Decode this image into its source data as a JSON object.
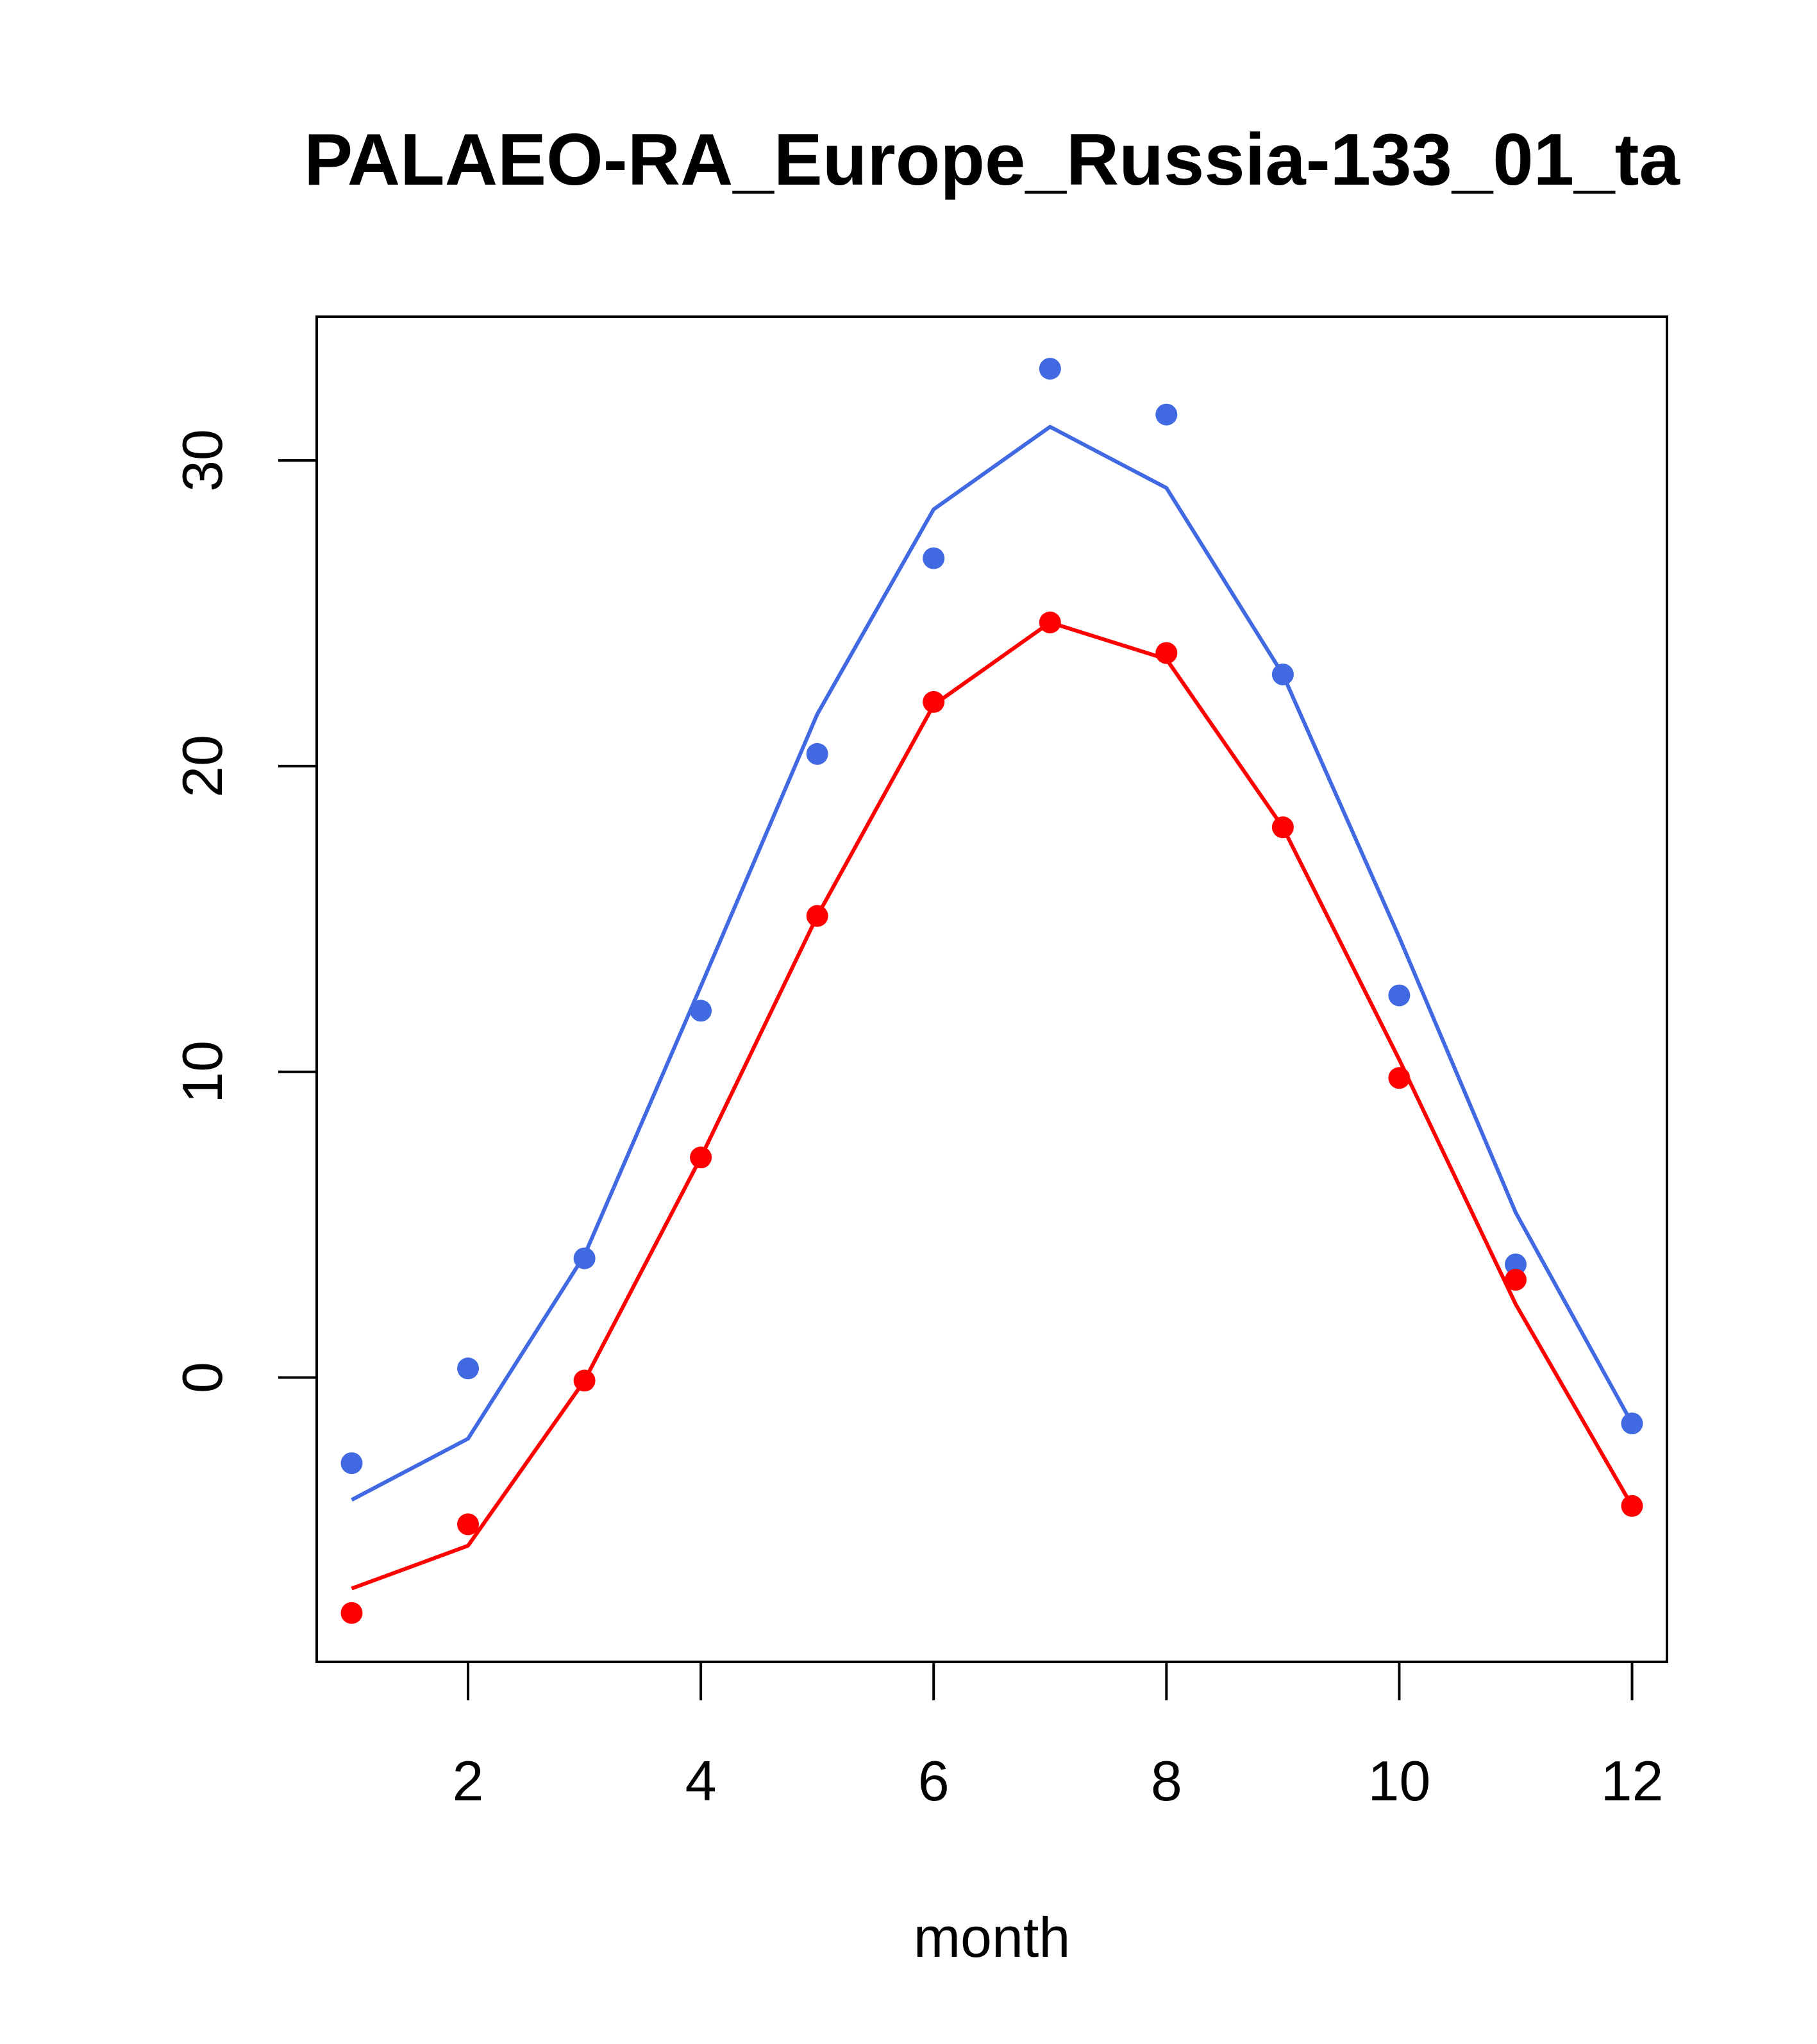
{
  "chart_data": {
    "type": "line",
    "title": "PALAEO-RA_Europe_Russia-133_01_ta",
    "xlabel": "month",
    "ylabel": "",
    "xlim": [
      0.7,
      12.3
    ],
    "ylim": [
      -9.3,
      34.7
    ],
    "x_ticks": [
      2,
      4,
      6,
      8,
      10,
      12
    ],
    "y_ticks": [
      0,
      10,
      20,
      30
    ],
    "grid": false,
    "x": [
      1,
      2,
      3,
      4,
      5,
      6,
      7,
      8,
      9,
      10,
      11,
      12
    ],
    "series": [
      {
        "name": "blue",
        "color": "#4169e1",
        "line": [
          -4.0,
          -2.0,
          4.0,
          12.8,
          21.7,
          28.4,
          31.1,
          29.1,
          23.0,
          14.4,
          5.4,
          -1.5
        ],
        "points": [
          -2.8,
          0.3,
          3.9,
          12.0,
          20.4,
          26.8,
          33.0,
          31.5,
          23.0,
          12.5,
          3.7,
          -1.5
        ]
      },
      {
        "name": "red",
        "color": "#ff0000",
        "line": [
          -6.9,
          -5.5,
          -0.1,
          7.2,
          15.1,
          22.0,
          24.7,
          23.5,
          18.0,
          10.4,
          2.4,
          -4.2
        ],
        "points": [
          -7.7,
          -4.8,
          -0.1,
          7.2,
          15.1,
          22.1,
          24.7,
          23.7,
          18.0,
          9.8,
          3.2,
          -4.2
        ]
      }
    ]
  }
}
